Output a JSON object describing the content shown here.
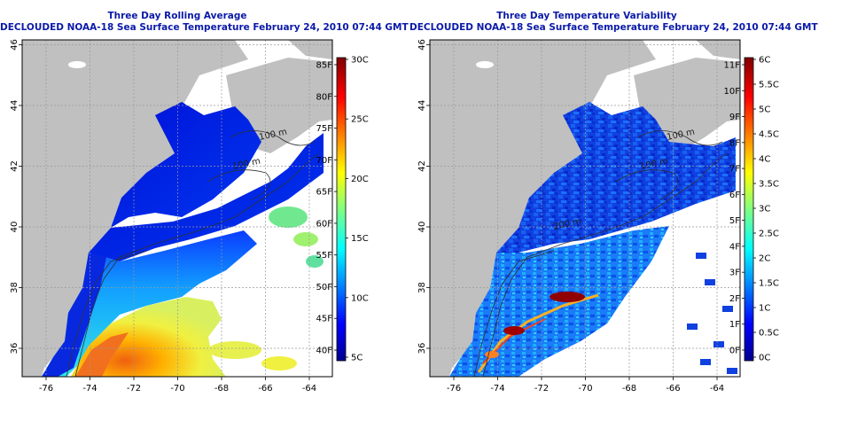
{
  "panels": [
    {
      "id": "left",
      "title": "Three Day Rolling Average",
      "subtitle": "DECLOUDED NOAA-18 Sea Surface Temperature February 24, 2010 07:44 GMT",
      "x_ticks": [
        "-76",
        "-74",
        "-72",
        "-70",
        "-68",
        "-66",
        "-64"
      ],
      "y_ticks": [
        "36",
        "38",
        "40",
        "42",
        "44",
        "46"
      ],
      "contour_labels": [
        "100 m",
        "100 m"
      ],
      "colorbar": {
        "left_labels": [
          "85F",
          "80F",
          "75F",
          "70F",
          "65F",
          "60F",
          "55F",
          "50F",
          "45F",
          "40F"
        ],
        "right_labels": [
          "30C",
          "25C",
          "20C",
          "15C",
          "10C",
          "5C"
        ]
      }
    },
    {
      "id": "right",
      "title": "Three Day Temperature Variability",
      "subtitle": "DECLOUDED NOAA-18 Sea Surface Temperature February 24, 2010 07:44 GMT",
      "x_ticks": [
        "-76",
        "-74",
        "-72",
        "-70",
        "-68",
        "-66",
        "-64"
      ],
      "y_ticks": [
        "36",
        "38",
        "40",
        "42",
        "44",
        "46"
      ],
      "contour_labels": [
        "100 m",
        "100 m",
        "200 m"
      ],
      "colorbar": {
        "left_labels": [
          "11F",
          "10F",
          "9F",
          "8F",
          "7F",
          "6F",
          "5F",
          "4F",
          "3F",
          "2F",
          "1F",
          "0F"
        ],
        "right_labels": [
          "6C",
          "5.5C",
          "5C",
          "4.5C",
          "4C",
          "3.5C",
          "3C",
          "2.5C",
          "2C",
          "1.5C",
          "1C",
          "0.5C",
          "0C"
        ]
      }
    }
  ],
  "colors": {
    "title": "#0b1aa8",
    "land": "#c0c0c0",
    "no_data": "#ffffff",
    "grid": "#999999"
  }
}
